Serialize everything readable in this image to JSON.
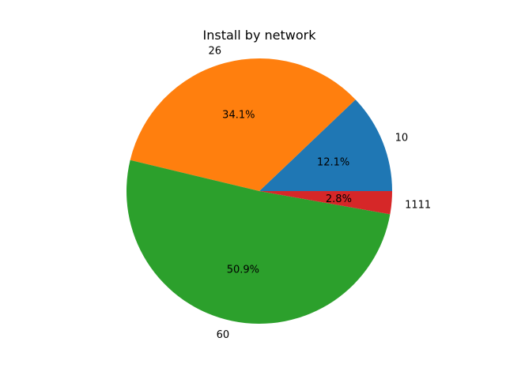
{
  "chart_data": {
    "type": "pie",
    "title": "Install by network",
    "labels": [
      "10",
      "26",
      "60",
      "1111"
    ],
    "values": [
      12.1,
      34.1,
      50.9,
      2.8
    ],
    "percent_labels": [
      "12.1%",
      "34.1%",
      "50.9%",
      "2.8%"
    ],
    "colors": [
      "#1f77b4",
      "#ff7f0e",
      "#2ca02c",
      "#d62728"
    ],
    "start_angle_deg": 0,
    "direction": "counterclockwise",
    "legend": "none"
  }
}
